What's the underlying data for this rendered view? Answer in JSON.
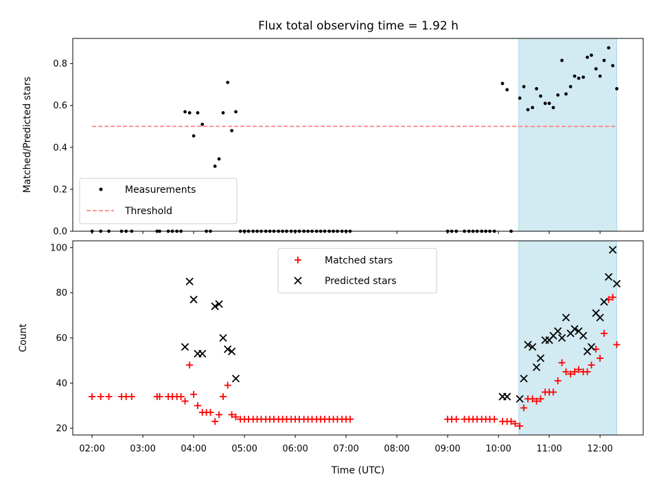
{
  "figure": {
    "title": "Flux total observing time = 1.92 h"
  },
  "chart_data": [
    {
      "type": "scatter",
      "name": "top-panel",
      "title": "Flux total observing time = 1.92 h",
      "xlabel": "",
      "ylabel": "Matched/Predicted stars",
      "xlim_hours": [
        1.62,
        12.85
      ],
      "ylim": [
        0,
        0.92
      ],
      "yticks": [
        0.0,
        0.2,
        0.4,
        0.6,
        0.8
      ],
      "ytick_labels": [
        "0.0",
        "0.2",
        "0.4",
        "0.6",
        "0.8"
      ],
      "highlight_span_hours": [
        10.4,
        12.33
      ],
      "highlight_color": "#add8e6",
      "legend": {
        "placement": "lower left",
        "items": [
          "Measurements",
          "Threshold"
        ]
      },
      "threshold": {
        "name": "Threshold",
        "value": 0.5,
        "x_range_hours": [
          2.0,
          12.33
        ],
        "color": "#ff7f7f",
        "style": "dashed"
      },
      "series": [
        {
          "name": "Measurements",
          "marker": "dot",
          "color": "#000000",
          "points": [
            [
              2.0,
              0.0
            ],
            [
              2.17,
              0.0
            ],
            [
              2.33,
              0.0
            ],
            [
              2.58,
              0.0
            ],
            [
              2.67,
              0.0
            ],
            [
              2.78,
              0.0
            ],
            [
              3.28,
              0.0
            ],
            [
              3.33,
              0.0
            ],
            [
              3.5,
              0.0
            ],
            [
              3.58,
              0.0
            ],
            [
              3.67,
              0.0
            ],
            [
              3.75,
              0.0
            ],
            [
              3.83,
              0.57
            ],
            [
              3.92,
              0.565
            ],
            [
              4.0,
              0.455
            ],
            [
              4.08,
              0.565
            ],
            [
              4.17,
              0.51
            ],
            [
              4.25,
              0.0
            ],
            [
              4.33,
              0.0
            ],
            [
              4.42,
              0.31
            ],
            [
              4.5,
              0.345
            ],
            [
              4.58,
              0.565
            ],
            [
              4.67,
              0.71
            ],
            [
              4.75,
              0.48
            ],
            [
              4.83,
              0.57
            ],
            [
              4.92,
              0.0
            ],
            [
              5.0,
              0.0
            ],
            [
              5.08,
              0.0
            ],
            [
              5.17,
              0.0
            ],
            [
              5.25,
              0.0
            ],
            [
              5.33,
              0.0
            ],
            [
              5.42,
              0.0
            ],
            [
              5.5,
              0.0
            ],
            [
              5.58,
              0.0
            ],
            [
              5.67,
              0.0
            ],
            [
              5.75,
              0.0
            ],
            [
              5.83,
              0.0
            ],
            [
              5.92,
              0.0
            ],
            [
              6.0,
              0.0
            ],
            [
              6.08,
              0.0
            ],
            [
              6.17,
              0.0
            ],
            [
              6.25,
              0.0
            ],
            [
              6.33,
              0.0
            ],
            [
              6.42,
              0.0
            ],
            [
              6.5,
              0.0
            ],
            [
              6.58,
              0.0
            ],
            [
              6.67,
              0.0
            ],
            [
              6.75,
              0.0
            ],
            [
              6.83,
              0.0
            ],
            [
              6.92,
              0.0
            ],
            [
              7.0,
              0.0
            ],
            [
              7.08,
              0.0
            ],
            [
              9.0,
              0.0
            ],
            [
              9.08,
              0.0
            ],
            [
              9.17,
              0.0
            ],
            [
              9.33,
              0.0
            ],
            [
              9.42,
              0.0
            ],
            [
              9.5,
              0.0
            ],
            [
              9.58,
              0.0
            ],
            [
              9.67,
              0.0
            ],
            [
              9.75,
              0.0
            ],
            [
              9.83,
              0.0
            ],
            [
              9.92,
              0.0
            ],
            [
              10.08,
              0.705
            ],
            [
              10.17,
              0.675
            ],
            [
              10.25,
              0.0
            ],
            [
              10.42,
              0.635
            ],
            [
              10.5,
              0.69
            ],
            [
              10.58,
              0.58
            ],
            [
              10.67,
              0.59
            ],
            [
              10.75,
              0.68
            ],
            [
              10.83,
              0.645
            ],
            [
              10.92,
              0.61
            ],
            [
              11.0,
              0.61
            ],
            [
              11.08,
              0.59
            ],
            [
              11.17,
              0.65
            ],
            [
              11.25,
              0.815
            ],
            [
              11.33,
              0.655
            ],
            [
              11.42,
              0.69
            ],
            [
              11.5,
              0.74
            ],
            [
              11.58,
              0.73
            ],
            [
              11.67,
              0.735
            ],
            [
              11.75,
              0.83
            ],
            [
              11.83,
              0.84
            ],
            [
              11.92,
              0.775
            ],
            [
              12.0,
              0.74
            ],
            [
              12.08,
              0.815
            ],
            [
              12.17,
              0.875
            ],
            [
              12.25,
              0.79
            ],
            [
              12.33,
              0.68
            ]
          ]
        }
      ]
    },
    {
      "type": "scatter",
      "name": "bottom-panel",
      "title": "",
      "xlabel": "Time (UTC)",
      "ylabel": "Count",
      "xlim_hours": [
        1.62,
        12.85
      ],
      "ylim": [
        17,
        103
      ],
      "xticks_hours": [
        2,
        3,
        4,
        5,
        6,
        7,
        8,
        9,
        10,
        11,
        12
      ],
      "xtick_labels": [
        "02:00",
        "03:00",
        "04:00",
        "05:00",
        "06:00",
        "07:00",
        "08:00",
        "09:00",
        "10:00",
        "11:00",
        "12:00"
      ],
      "yticks": [
        20,
        40,
        60,
        80,
        100
      ],
      "ytick_labels": [
        "20",
        "40",
        "60",
        "80",
        "100"
      ],
      "highlight_span_hours": [
        10.4,
        12.33
      ],
      "highlight_color": "#add8e6",
      "legend": {
        "placement": "upper center",
        "items": [
          "Matched stars",
          "Predicted stars"
        ]
      },
      "series": [
        {
          "name": "Matched stars",
          "marker": "plus",
          "color": "#ff0000",
          "points": [
            [
              2.0,
              34
            ],
            [
              2.17,
              34
            ],
            [
              2.33,
              34
            ],
            [
              2.58,
              34
            ],
            [
              2.67,
              34
            ],
            [
              2.78,
              34
            ],
            [
              3.28,
              34
            ],
            [
              3.33,
              34
            ],
            [
              3.5,
              34
            ],
            [
              3.58,
              34
            ],
            [
              3.67,
              34
            ],
            [
              3.75,
              34
            ],
            [
              3.83,
              32
            ],
            [
              3.92,
              48
            ],
            [
              4.0,
              35
            ],
            [
              4.08,
              30
            ],
            [
              4.17,
              27
            ],
            [
              4.25,
              27
            ],
            [
              4.33,
              27
            ],
            [
              4.42,
              23
            ],
            [
              4.5,
              26
            ],
            [
              4.58,
              34
            ],
            [
              4.67,
              39
            ],
            [
              4.75,
              26
            ],
            [
              4.83,
              25
            ],
            [
              4.92,
              24
            ],
            [
              5.0,
              24
            ],
            [
              5.08,
              24
            ],
            [
              5.17,
              24
            ],
            [
              5.25,
              24
            ],
            [
              5.33,
              24
            ],
            [
              5.42,
              24
            ],
            [
              5.5,
              24
            ],
            [
              5.58,
              24
            ],
            [
              5.67,
              24
            ],
            [
              5.75,
              24
            ],
            [
              5.83,
              24
            ],
            [
              5.92,
              24
            ],
            [
              6.0,
              24
            ],
            [
              6.08,
              24
            ],
            [
              6.17,
              24
            ],
            [
              6.25,
              24
            ],
            [
              6.33,
              24
            ],
            [
              6.42,
              24
            ],
            [
              6.5,
              24
            ],
            [
              6.58,
              24
            ],
            [
              6.67,
              24
            ],
            [
              6.75,
              24
            ],
            [
              6.83,
              24
            ],
            [
              6.92,
              24
            ],
            [
              7.0,
              24
            ],
            [
              7.08,
              24
            ],
            [
              9.0,
              24
            ],
            [
              9.08,
              24
            ],
            [
              9.17,
              24
            ],
            [
              9.33,
              24
            ],
            [
              9.42,
              24
            ],
            [
              9.5,
              24
            ],
            [
              9.58,
              24
            ],
            [
              9.67,
              24
            ],
            [
              9.75,
              24
            ],
            [
              9.83,
              24
            ],
            [
              9.92,
              24
            ],
            [
              10.08,
              23
            ],
            [
              10.17,
              23
            ],
            [
              10.25,
              23
            ],
            [
              10.33,
              22
            ],
            [
              10.42,
              21
            ],
            [
              10.5,
              29
            ],
            [
              10.58,
              33
            ],
            [
              10.67,
              33
            ],
            [
              10.75,
              32
            ],
            [
              10.83,
              33
            ],
            [
              10.92,
              36
            ],
            [
              11.0,
              36
            ],
            [
              11.08,
              36
            ],
            [
              11.17,
              41
            ],
            [
              11.25,
              49
            ],
            [
              11.33,
              45
            ],
            [
              11.42,
              44
            ],
            [
              11.5,
              45
            ],
            [
              11.58,
              46
            ],
            [
              11.67,
              45
            ],
            [
              11.75,
              45
            ],
            [
              11.83,
              48
            ],
            [
              11.92,
              55
            ],
            [
              12.0,
              51
            ],
            [
              12.08,
              62
            ],
            [
              12.17,
              77
            ],
            [
              12.25,
              78
            ],
            [
              12.33,
              57
            ]
          ]
        },
        {
          "name": "Predicted stars",
          "marker": "x",
          "color": "#000000",
          "points": [
            [
              3.83,
              56
            ],
            [
              3.92,
              85
            ],
            [
              4.0,
              77
            ],
            [
              4.08,
              53
            ],
            [
              4.17,
              53
            ],
            [
              4.42,
              74
            ],
            [
              4.5,
              75
            ],
            [
              4.58,
              60
            ],
            [
              4.67,
              55
            ],
            [
              4.75,
              54
            ],
            [
              4.83,
              42
            ],
            [
              10.08,
              34
            ],
            [
              10.17,
              34
            ],
            [
              10.42,
              33
            ],
            [
              10.5,
              42
            ],
            [
              10.58,
              57
            ],
            [
              10.67,
              56
            ],
            [
              10.75,
              47
            ],
            [
              10.83,
              51
            ],
            [
              10.92,
              59
            ],
            [
              11.0,
              59
            ],
            [
              11.08,
              61
            ],
            [
              11.17,
              63
            ],
            [
              11.25,
              60
            ],
            [
              11.33,
              69
            ],
            [
              11.42,
              62
            ],
            [
              11.5,
              64
            ],
            [
              11.58,
              63
            ],
            [
              11.67,
              61
            ],
            [
              11.75,
              54
            ],
            [
              11.83,
              56
            ],
            [
              11.92,
              71
            ],
            [
              12.0,
              69
            ],
            [
              12.08,
              76
            ],
            [
              12.17,
              87
            ],
            [
              12.25,
              99
            ],
            [
              12.33,
              84
            ]
          ]
        }
      ]
    }
  ]
}
